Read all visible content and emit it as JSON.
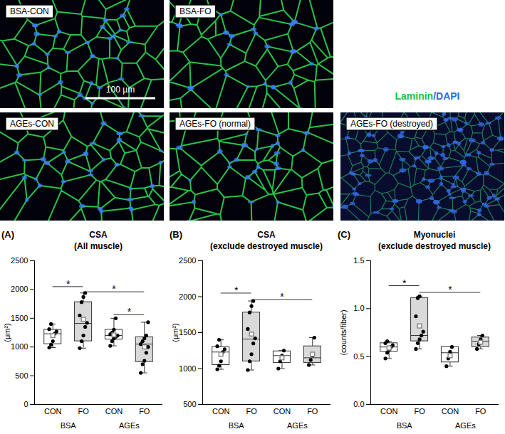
{
  "figure": {
    "panels": [
      "BSA-CON",
      "BSA-FO",
      "AGEs-CON",
      "AGEs-FO (normal)",
      "AGEs-FO (destroyed)"
    ],
    "scale_bar": "100 µm",
    "stain_legend": [
      {
        "text": "Laminin",
        "color": "#22c040"
      },
      {
        "text": "/DAPI",
        "color": "#2a6fd6"
      }
    ]
  },
  "chart_data": [
    {
      "type": "box",
      "panel": "(A)",
      "title": "CSA",
      "subtitle": "(All muscle)",
      "y_label": "(μm²)",
      "categories": [
        "CON",
        "FO",
        "CON",
        "FO"
      ],
      "groups": [
        "BSA",
        "AGEs"
      ],
      "colors": [
        "#ffffff",
        "#d9d9d9",
        "#ffffff",
        "#d9d9d9"
      ],
      "ylim": [
        0,
        2500
      ],
      "yticks": [
        0,
        500,
        1000,
        1500,
        2000,
        2500
      ],
      "boxes": [
        {
          "q1": 1050,
          "median": 1230,
          "q3": 1300,
          "whisker_low": 990,
          "whisker_high": 1400,
          "mean": 1200
        },
        {
          "q1": 1100,
          "median": 1410,
          "q3": 1780,
          "whisker_low": 980,
          "whisker_high": 1940,
          "mean": 1480
        },
        {
          "q1": 1130,
          "median": 1200,
          "q3": 1300,
          "whisker_low": 1020,
          "whisker_high": 1500,
          "mean": 1210
        },
        {
          "q1": 740,
          "median": 1050,
          "q3": 1170,
          "whisker_low": 550,
          "whisker_high": 1430,
          "mean": 1000
        }
      ],
      "points": [
        [
          990,
          1040,
          1100,
          1230,
          1270,
          1310,
          1400
        ],
        [
          980,
          1100,
          1200,
          1350,
          1420,
          1550,
          1780,
          1870,
          1940
        ],
        [
          1020,
          1100,
          1150,
          1180,
          1200,
          1220,
          1250,
          1300,
          1500
        ],
        [
          550,
          700,
          760,
          900,
          1000,
          1050,
          1100,
          1150,
          1200,
          1430
        ]
      ],
      "significance": [
        {
          "pair": [
            0,
            1
          ],
          "y": 2050,
          "label": "*"
        },
        {
          "pair": [
            1,
            3
          ],
          "y": 1960,
          "label": "*"
        },
        {
          "pair": [
            2,
            3
          ],
          "y": 1560,
          "label": "*"
        }
      ]
    },
    {
      "type": "box",
      "panel": "(B)",
      "title": "CSA",
      "subtitle": "(exclude destroyed muscle)",
      "y_label": "(μm²)",
      "categories": [
        "CON",
        "FO",
        "CON",
        "FO"
      ],
      "groups": [
        "BSA",
        "AGEs"
      ],
      "colors": [
        "#ffffff",
        "#d9d9d9",
        "#ffffff",
        "#d9d9d9"
      ],
      "ylim": [
        500,
        2500
      ],
      "yticks": [
        500,
        1000,
        1500,
        2000,
        2500
      ],
      "boxes": [
        {
          "q1": 1050,
          "median": 1230,
          "q3": 1300,
          "whisker_low": 990,
          "whisker_high": 1400,
          "mean": 1200
        },
        {
          "q1": 1100,
          "median": 1410,
          "q3": 1780,
          "whisker_low": 980,
          "whisker_high": 1940,
          "mean": 1480
        },
        {
          "q1": 1080,
          "median": 1180,
          "q3": 1240,
          "whisker_low": 1000,
          "whisker_high": 1250,
          "mean": 1150
        },
        {
          "q1": 1080,
          "median": 1150,
          "q3": 1310,
          "whisker_low": 1050,
          "whisker_high": 1430,
          "mean": 1200
        }
      ],
      "points": [
        [
          990,
          1040,
          1100,
          1230,
          1270,
          1310,
          1400
        ],
        [
          980,
          1100,
          1200,
          1350,
          1420,
          1550,
          1780,
          1870,
          1940
        ],
        [
          1000,
          1100,
          1180,
          1250
        ],
        [
          1050,
          1120,
          1180,
          1430
        ]
      ],
      "significance": [
        {
          "pair": [
            0,
            1
          ],
          "y": 2050,
          "label": "*"
        },
        {
          "pair": [
            1,
            3
          ],
          "y": 1960,
          "label": "*"
        }
      ]
    },
    {
      "type": "box",
      "panel": "(C)",
      "title": "Myonuclei",
      "subtitle": "(exclude destroyed muscle)",
      "y_label": "(counts/fiber)",
      "categories": [
        "CON",
        "FO",
        "CON",
        "FO"
      ],
      "groups": [
        "BSA",
        "AGEs"
      ],
      "colors": [
        "#ffffff",
        "#d9d9d9",
        "#ffffff",
        "#d9d9d9"
      ],
      "ylim": [
        0,
        1.5
      ],
      "yticks": [
        {
          "value": 0,
          "label": "0.0"
        },
        0.5,
        {
          "value": 1,
          "label": "1.0"
        },
        1.5
      ],
      "boxes": [
        {
          "q1": 0.55,
          "median": 0.6,
          "q3": 0.64,
          "whisker_low": 0.48,
          "whisker_high": 0.66,
          "mean": 0.59
        },
        {
          "q1": 0.66,
          "median": 0.72,
          "q3": 1.11,
          "whisker_low": 0.58,
          "whisker_high": 1.13,
          "mean": 0.82
        },
        {
          "q1": 0.44,
          "median": 0.54,
          "q3": 0.6,
          "whisker_low": 0.4,
          "whisker_high": 0.6,
          "mean": 0.51
        },
        {
          "q1": 0.6,
          "median": 0.66,
          "q3": 0.7,
          "whisker_low": 0.58,
          "whisker_high": 0.72,
          "mean": 0.65
        }
      ],
      "points": [
        [
          0.48,
          0.54,
          0.57,
          0.6,
          0.62,
          0.64,
          0.66
        ],
        [
          0.58,
          0.64,
          0.68,
          0.72,
          0.76,
          0.92,
          1.11,
          1.13
        ],
        [
          0.4,
          0.48,
          0.55,
          0.6
        ],
        [
          0.58,
          0.63,
          0.68,
          0.72
        ]
      ],
      "significance": [
        {
          "pair": [
            0,
            1
          ],
          "y": 1.24,
          "label": "*"
        },
        {
          "pair": [
            1,
            3
          ],
          "y": 1.17,
          "label": "*"
        }
      ]
    }
  ]
}
